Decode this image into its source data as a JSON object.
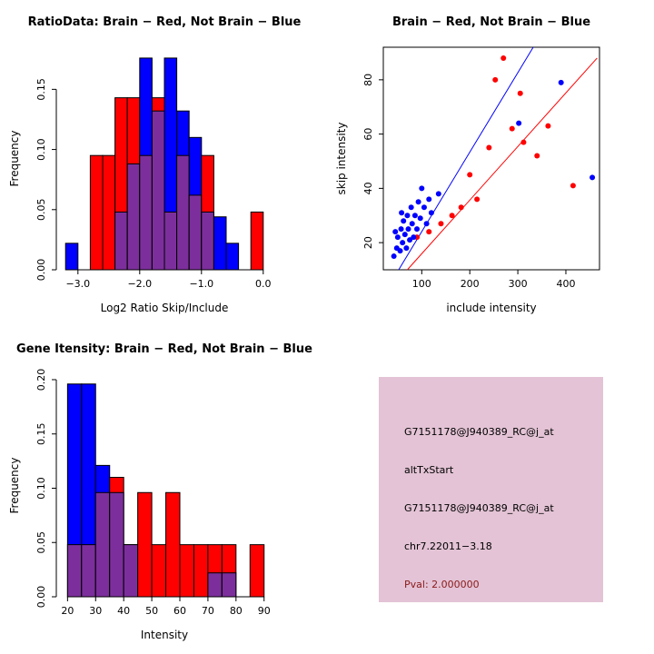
{
  "colors": {
    "red": "#ff0000",
    "blue": "#0000ff",
    "overlap": "#7c2f9c",
    "axis": "#000000",
    "info_bg": "#e3c3d5",
    "pval": "#8b1a1a"
  },
  "chart_data": [
    {
      "id": "ratio-hist",
      "type": "histogram",
      "title": "RatioData: Brain − Red, Not Brain − Blue",
      "xlabel": "Log2 Ratio Skip/Include",
      "ylabel": "Frequency",
      "bin_start": -3.2,
      "bin_width": 0.2,
      "xlim": [
        -3.35,
        0.15
      ],
      "ylim": [
        0,
        0.185
      ],
      "xtick_values": [
        -3,
        -2,
        -1,
        0
      ],
      "xtick_labels": [
        "−3.0",
        "−2.0",
        "−1.0",
        "0.0"
      ],
      "ytick_values": [
        0,
        0.05,
        0.1,
        0.15
      ],
      "ytick_labels": [
        "0.00",
        "0.05",
        "0.10",
        "0.15"
      ],
      "legend": "bars purple where red and blue histograms overlap",
      "series": [
        {
          "name": "Brain",
          "color_key": "red",
          "values": [
            0,
            0,
            0.095,
            0.095,
            0.143,
            0.143,
            0.095,
            0.143,
            0.048,
            0.095,
            0.062,
            0.095,
            0,
            0,
            0,
            0.048
          ]
        },
        {
          "name": "Not Brain",
          "color_key": "blue",
          "values": [
            0.022,
            0,
            0,
            0,
            0.048,
            0.088,
            0.176,
            0.132,
            0.176,
            0.132,
            0.11,
            0.048,
            0.044,
            0.022,
            0,
            0
          ]
        }
      ]
    },
    {
      "id": "intensity-scatter",
      "type": "scatter",
      "title": "Brain − Red, Not Brain − Blue",
      "xlabel": "include intensity",
      "ylabel": "skip intensity",
      "xlim": [
        20,
        470
      ],
      "ylim": [
        10,
        92
      ],
      "xtick_values": [
        100,
        200,
        300,
        400
      ],
      "xtick_labels": [
        "100",
        "200",
        "300",
        "400"
      ],
      "ytick_values": [
        20,
        40,
        60,
        80
      ],
      "ytick_labels": [
        "20",
        "40",
        "60",
        "80"
      ],
      "series": [
        {
          "name": "Brain",
          "color_key": "red",
          "points": [
            [
              90,
              22
            ],
            [
              115,
              24
            ],
            [
              140,
              27
            ],
            [
              163,
              30
            ],
            [
              182,
              33
            ],
            [
              200,
              45
            ],
            [
              215,
              36
            ],
            [
              240,
              55
            ],
            [
              253,
              80
            ],
            [
              270,
              88
            ],
            [
              288,
              62
            ],
            [
              305,
              75
            ],
            [
              312,
              57
            ],
            [
              340,
              52
            ],
            [
              363,
              63
            ],
            [
              415,
              41
            ]
          ]
        },
        {
          "name": "Not Brain",
          "color_key": "blue",
          "points": [
            [
              42,
              15
            ],
            [
              45,
              24
            ],
            [
              48,
              18
            ],
            [
              50,
              22
            ],
            [
              55,
              17
            ],
            [
              57,
              25
            ],
            [
              58,
              31
            ],
            [
              60,
              20
            ],
            [
              62,
              28
            ],
            [
              65,
              23
            ],
            [
              68,
              18
            ],
            [
              70,
              30
            ],
            [
              72,
              25
            ],
            [
              75,
              21
            ],
            [
              78,
              33
            ],
            [
              80,
              27
            ],
            [
              83,
              22
            ],
            [
              86,
              30
            ],
            [
              90,
              25
            ],
            [
              93,
              35
            ],
            [
              97,
              29
            ],
            [
              100,
              40
            ],
            [
              105,
              33
            ],
            [
              110,
              27
            ],
            [
              115,
              36
            ],
            [
              120,
              31
            ],
            [
              135,
              38
            ],
            [
              302,
              64
            ],
            [
              390,
              79
            ],
            [
              455,
              44
            ]
          ]
        }
      ],
      "lines": [
        {
          "name": "not-brain-fit",
          "color_key": "blue",
          "x1": 52,
          "y1": 10,
          "x2": 332,
          "y2": 92
        },
        {
          "name": "brain-fit",
          "color_key": "red",
          "x1": 70,
          "y1": 10,
          "x2": 465,
          "y2": 88
        }
      ]
    },
    {
      "id": "gene-hist",
      "type": "histogram",
      "title": "Gene Itensity: Brain − Red, Not Brain − Blue",
      "xlabel": "Intensity",
      "ylabel": "Frequency",
      "bin_start": 20,
      "bin_width": 5,
      "xlim": [
        16,
        93
      ],
      "ylim": [
        0,
        0.205
      ],
      "xtick_values": [
        20,
        30,
        40,
        50,
        60,
        70,
        80,
        90
      ],
      "xtick_labels": [
        "20",
        "30",
        "40",
        "50",
        "60",
        "70",
        "80",
        "90"
      ],
      "ytick_values": [
        0,
        0.05,
        0.1,
        0.15,
        0.2
      ],
      "ytick_labels": [
        "0.00",
        "0.05",
        "0.10",
        "0.15",
        "0.20"
      ],
      "legend": "bars purple where red and blue histograms overlap",
      "series": [
        {
          "name": "Brain",
          "color_key": "red",
          "values": [
            0.048,
            0.048,
            0.096,
            0.11,
            0.048,
            0.096,
            0.048,
            0.096,
            0.048,
            0.048,
            0.048,
            0.048,
            0,
            0.048
          ]
        },
        {
          "name": "Not Brain",
          "color_key": "blue",
          "values": [
            0.196,
            0.196,
            0.121,
            0.096,
            0.048,
            0,
            0,
            0,
            0,
            0,
            0.022,
            0.022,
            0,
            0
          ]
        }
      ]
    }
  ],
  "info_panel": {
    "lines": [
      "G7151178@J940389_RC@j_at",
      "altTxStart",
      "G7151178@J940389_RC@j_at",
      "chr7.22011−3.18"
    ],
    "pval": "Pval: 2.000000"
  }
}
